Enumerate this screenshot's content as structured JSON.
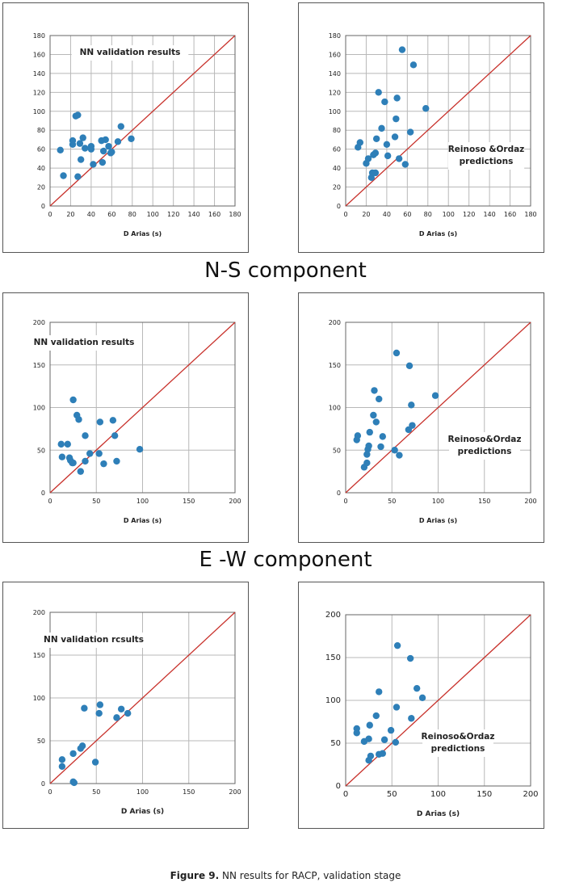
{
  "sections": [
    {
      "title": "N-S component"
    },
    {
      "title": "E -W component"
    }
  ],
  "caption": {
    "label": "Figure 9.",
    "text": " NN results for RACP, validation stage"
  },
  "colors": {
    "point": "#2e7fb8",
    "line": "#c8312b",
    "grid": "#b8b8b8",
    "axis": "#666666"
  },
  "chart_data": [
    {
      "type": "scatter",
      "id": "ns-nn",
      "title": "",
      "annotation": "NN  validation results",
      "xlabel": "D Arias (s)",
      "ylabel": "",
      "xlim": [
        0,
        180
      ],
      "ylim": [
        0,
        180
      ],
      "xticks": [
        0,
        20,
        40,
        60,
        80,
        100,
        120,
        140,
        160,
        180
      ],
      "yticks": [
        0,
        20,
        40,
        60,
        80,
        100,
        120,
        140,
        160,
        180
      ],
      "diagonal": true,
      "points": [
        [
          10,
          59
        ],
        [
          13,
          32
        ],
        [
          22,
          69
        ],
        [
          22,
          65
        ],
        [
          25,
          95
        ],
        [
          27,
          96
        ],
        [
          27,
          31
        ],
        [
          29,
          66
        ],
        [
          30,
          49
        ],
        [
          32,
          72
        ],
        [
          34,
          61
        ],
        [
          40,
          63
        ],
        [
          42,
          44
        ],
        [
          40,
          60
        ],
        [
          50,
          69
        ],
        [
          51,
          46
        ],
        [
          52,
          58
        ],
        [
          54,
          70
        ],
        [
          57,
          63
        ],
        [
          59,
          56
        ],
        [
          60,
          57
        ],
        [
          66,
          68
        ],
        [
          69,
          84
        ],
        [
          79,
          71
        ]
      ]
    },
    {
      "type": "scatter",
      "id": "ns-ro",
      "title": "",
      "annotation": "Reinoso &Ordaz\npredictions",
      "xlabel": "D Arias (s)",
      "ylabel": "",
      "xlim": [
        0,
        180
      ],
      "ylim": [
        0,
        180
      ],
      "xticks": [
        0,
        20,
        40,
        60,
        80,
        100,
        120,
        140,
        160,
        180
      ],
      "yticks": [
        0,
        20,
        40,
        60,
        80,
        100,
        120,
        140,
        160,
        180
      ],
      "diagonal": true,
      "points": [
        [
          12,
          62
        ],
        [
          14,
          67
        ],
        [
          20,
          45
        ],
        [
          22,
          50
        ],
        [
          25,
          30
        ],
        [
          26,
          35
        ],
        [
          27,
          54
        ],
        [
          29,
          56
        ],
        [
          29,
          35
        ],
        [
          30,
          71
        ],
        [
          32,
          120
        ],
        [
          35,
          82
        ],
        [
          38,
          110
        ],
        [
          40,
          65
        ],
        [
          41,
          53
        ],
        [
          48,
          73
        ],
        [
          49,
          92
        ],
        [
          50,
          114
        ],
        [
          52,
          50
        ],
        [
          55,
          165
        ],
        [
          58,
          44
        ],
        [
          63,
          78
        ],
        [
          66,
          149
        ],
        [
          78,
          103
        ]
      ]
    },
    {
      "type": "scatter",
      "id": "ew-nn",
      "title": "",
      "annotation": "NN validation results",
      "xlabel": "D Arias (s)",
      "ylabel": "",
      "xlim": [
        0,
        200
      ],
      "ylim": [
        0,
        200
      ],
      "xticks": [
        0,
        50,
        100,
        150,
        200
      ],
      "yticks": [
        0,
        50,
        100,
        150,
        200
      ],
      "diagonal": true,
      "points": [
        [
          12,
          57
        ],
        [
          13,
          42
        ],
        [
          19,
          57
        ],
        [
          21,
          41
        ],
        [
          22,
          38
        ],
        [
          24,
          35
        ],
        [
          25,
          35
        ],
        [
          25,
          109
        ],
        [
          29,
          91
        ],
        [
          31,
          86
        ],
        [
          33,
          25
        ],
        [
          38,
          67
        ],
        [
          38,
          37
        ],
        [
          43,
          46
        ],
        [
          53,
          46
        ],
        [
          54,
          83
        ],
        [
          58,
          34
        ],
        [
          68,
          85
        ],
        [
          70,
          67
        ],
        [
          72,
          37
        ],
        [
          97,
          51
        ]
      ]
    },
    {
      "type": "scatter",
      "id": "ew-ro",
      "title": "",
      "annotation": "Reinoso&Ordaz\npredictions",
      "xlabel": "D Arias (s)",
      "ylabel": "",
      "xlim": [
        0,
        200
      ],
      "ylim": [
        0,
        200
      ],
      "xticks": [
        0,
        50,
        100,
        150,
        200
      ],
      "yticks": [
        0,
        50,
        100,
        150,
        200
      ],
      "diagonal": true,
      "points": [
        [
          12,
          62
        ],
        [
          13,
          67
        ],
        [
          20,
          30
        ],
        [
          23,
          45
        ],
        [
          23,
          35
        ],
        [
          24,
          51
        ],
        [
          25,
          55
        ],
        [
          26,
          71
        ],
        [
          30,
          91
        ],
        [
          31,
          120
        ],
        [
          33,
          83
        ],
        [
          36,
          110
        ],
        [
          38,
          54
        ],
        [
          40,
          66
        ],
        [
          53,
          50
        ],
        [
          55,
          164
        ],
        [
          58,
          44
        ],
        [
          68,
          74
        ],
        [
          69,
          149
        ],
        [
          71,
          103
        ],
        [
          72,
          79
        ],
        [
          97,
          114
        ]
      ]
    },
    {
      "type": "scatter",
      "id": "ud-nn",
      "title": "",
      "annotation": "NN  validation rcsults",
      "xlabel": "D Arias (s)",
      "ylabel": "",
      "xlim": [
        0,
        200
      ],
      "ylim": [
        0,
        200
      ],
      "xticks": [
        0,
        50,
        100,
        150,
        200
      ],
      "yticks": [
        0,
        50,
        100,
        150,
        200
      ],
      "diagonal": true,
      "points": [
        [
          13,
          28
        ],
        [
          13,
          20
        ],
        [
          25,
          35
        ],
        [
          25,
          2
        ],
        [
          26,
          1
        ],
        [
          33,
          41
        ],
        [
          35,
          44
        ],
        [
          37,
          88
        ],
        [
          49,
          25
        ],
        [
          53,
          82
        ],
        [
          54,
          92
        ],
        [
          72,
          77
        ],
        [
          77,
          87
        ],
        [
          84,
          82
        ]
      ]
    },
    {
      "type": "scatter",
      "id": "ud-ro",
      "title": "",
      "annotation": "Reinoso&Ordaz\npredictions",
      "xlabel": "D Arias (s)",
      "ylabel": "",
      "xlim": [
        0,
        200
      ],
      "ylim": [
        0,
        200
      ],
      "xticks": [
        0,
        50,
        100,
        150,
        200
      ],
      "yticks": [
        0,
        50,
        100,
        150,
        200
      ],
      "diagonal": true,
      "points": [
        [
          12,
          62
        ],
        [
          12,
          67
        ],
        [
          20,
          52
        ],
        [
          25,
          55
        ],
        [
          25,
          30
        ],
        [
          26,
          71
        ],
        [
          27,
          35
        ],
        [
          33,
          82
        ],
        [
          36,
          110
        ],
        [
          36,
          37
        ],
        [
          40,
          38
        ],
        [
          42,
          54
        ],
        [
          49,
          65
        ],
        [
          54,
          51
        ],
        [
          55,
          92
        ],
        [
          56,
          164
        ],
        [
          70,
          149
        ],
        [
          71,
          79
        ],
        [
          77,
          114
        ],
        [
          83,
          103
        ]
      ]
    }
  ]
}
